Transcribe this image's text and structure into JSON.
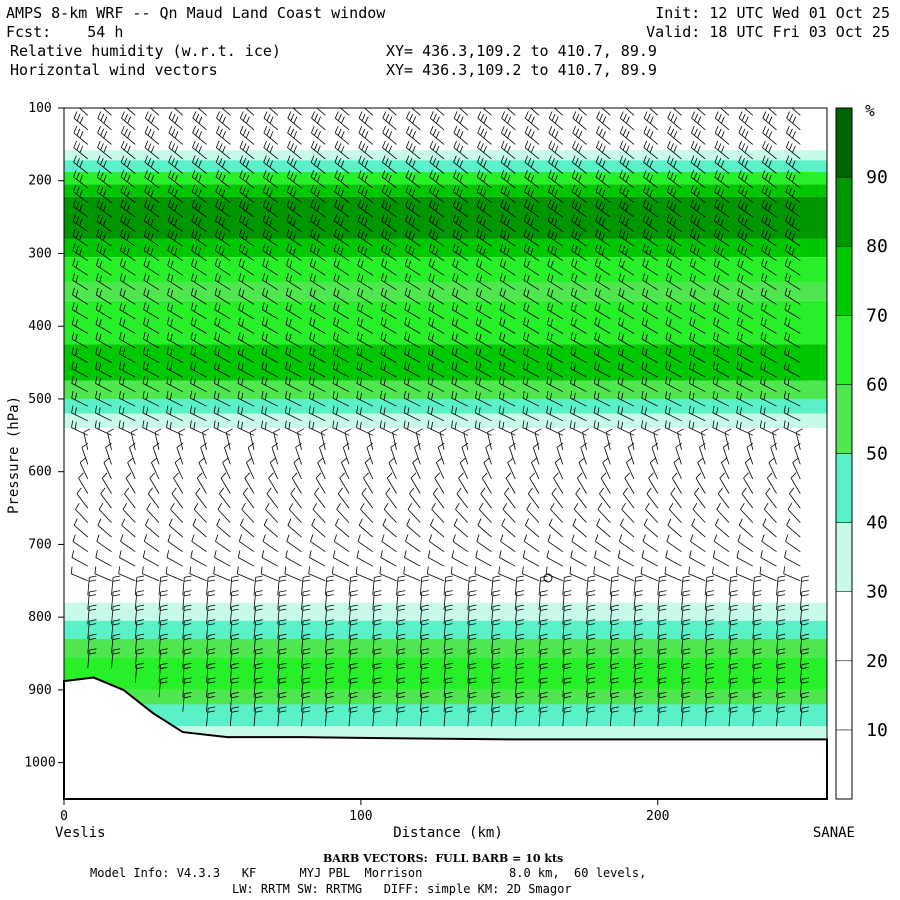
{
  "header": {
    "title": "AMPS 8-km WRF -- Qn Maud Land Coast window",
    "init": "Init: 12 UTC Wed 01 Oct 25",
    "fcst": "Fcst:    54 h",
    "valid": "Valid: 18 UTC Fri 03 Oct 25",
    "field1": "Relative humidity (w.r.t. ice)",
    "field2": "Horizontal wind vectors",
    "xy1": "XY= 436.3,109.2 to 410.7, 89.9",
    "xy2": "XY= 436.3,109.2 to 410.7, 89.9"
  },
  "footer": {
    "barb": "BARB VECTORS:  FULL BARB = 10 kts",
    "model1": "Model Info: V4.3.3   KF      MYJ PBL  Morrison            8.0 km,  60 levels,",
    "model2": "LW: RRTM SW: RRTMG   DIFF: simple KM: 2D Smagor"
  },
  "chart_data": {
    "type": "heatmap",
    "xlabel": "Distance (km)",
    "ylabel": "Pressure (hPa)",
    "xlim": [
      0,
      257
    ],
    "ylim": [
      1050,
      100
    ],
    "x_ticks": [
      0,
      100,
      200
    ],
    "y_ticks": [
      100,
      200,
      300,
      400,
      500,
      600,
      700,
      800,
      900,
      1000
    ],
    "x_start_label": "Veslis",
    "x_end_label": "SANAE",
    "colorbar": {
      "unit": "%",
      "levels": [
        10,
        20,
        30,
        40,
        50,
        60,
        70,
        80,
        90
      ],
      "colors": [
        "#ffffff",
        "#ffffff",
        "#ffffff",
        "#c8fae8",
        "#5af0c8",
        "#50e650",
        "#28f028",
        "#00c800",
        "#009600",
        "#006400"
      ]
    },
    "rh_bands": [
      {
        "p_top": 100,
        "p_bottom": 158,
        "rh": 15
      },
      {
        "p_top": 158,
        "p_bottom": 172,
        "rh": 35
      },
      {
        "p_top": 172,
        "p_bottom": 188,
        "rh": 45
      },
      {
        "p_top": 188,
        "p_bottom": 205,
        "rh": 65
      },
      {
        "p_top": 205,
        "p_bottom": 222,
        "rh": 75
      },
      {
        "p_top": 222,
        "p_bottom": 280,
        "rh": 85
      },
      {
        "p_top": 280,
        "p_bottom": 305,
        "rh": 75
      },
      {
        "p_top": 305,
        "p_bottom": 340,
        "rh": 65
      },
      {
        "p_top": 340,
        "p_bottom": 365,
        "rh": 55
      },
      {
        "p_top": 365,
        "p_bottom": 425,
        "rh": 65
      },
      {
        "p_top": 425,
        "p_bottom": 475,
        "rh": 75
      },
      {
        "p_top": 475,
        "p_bottom": 500,
        "rh": 55
      },
      {
        "p_top": 500,
        "p_bottom": 520,
        "rh": 45
      },
      {
        "p_top": 520,
        "p_bottom": 540,
        "rh": 35
      },
      {
        "p_top": 540,
        "p_bottom": 780,
        "rh": 15
      },
      {
        "p_top": 780,
        "p_bottom": 805,
        "rh": 35
      },
      {
        "p_top": 805,
        "p_bottom": 830,
        "rh": 45
      },
      {
        "p_top": 830,
        "p_bottom": 855,
        "rh": 55
      },
      {
        "p_top": 855,
        "p_bottom": 900,
        "rh": 65
      },
      {
        "p_top": 900,
        "p_bottom": 920,
        "rh": 55
      },
      {
        "p_top": 920,
        "p_bottom": 950,
        "rh": 45
      },
      {
        "p_top": 950,
        "p_bottom": 1050,
        "rh": 35
      }
    ],
    "terrain": [
      [
        0,
        888
      ],
      [
        10,
        883
      ],
      [
        20,
        900
      ],
      [
        30,
        932
      ],
      [
        40,
        958
      ],
      [
        55,
        965
      ],
      [
        80,
        965
      ],
      [
        100,
        966
      ],
      [
        150,
        968
      ],
      [
        200,
        968
      ],
      [
        257,
        968
      ]
    ],
    "barb_columns_x": [
      8,
      16,
      24,
      32,
      40,
      48,
      56,
      64,
      72,
      80,
      88,
      96,
      104,
      112,
      120,
      128,
      136,
      144,
      152,
      160,
      168,
      176,
      184,
      192,
      200,
      208,
      216,
      224,
      232,
      240,
      248
    ],
    "barb_levels_p": [
      110,
      130,
      150,
      170,
      190,
      210,
      230,
      250,
      270,
      290,
      310,
      330,
      350,
      370,
      390,
      410,
      430,
      450,
      470,
      490,
      510,
      530,
      550,
      570,
      590,
      610,
      630,
      650,
      670,
      690,
      710,
      730,
      750,
      770,
      790,
      810,
      830,
      850,
      870,
      890,
      910,
      930,
      950
    ]
  }
}
